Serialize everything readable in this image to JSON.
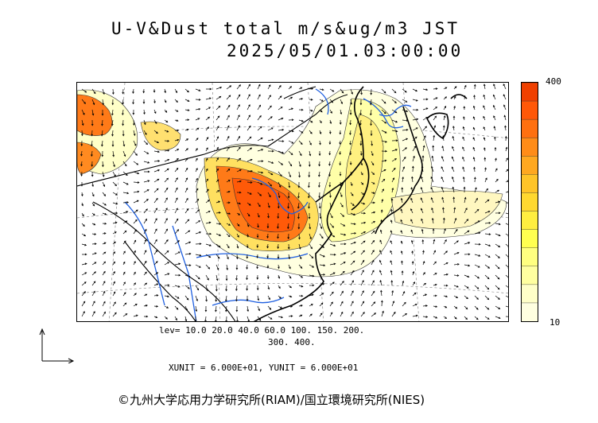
{
  "header": {
    "title_line1": "U-V&Dust total m/s&ug/m3 JST",
    "title_line2": "2025/05/01.03:00:00"
  },
  "colorbar": {
    "max_label": "400",
    "min_label": "10",
    "colors": [
      "#ffffe0",
      "#ffffc8",
      "#ffffa0",
      "#ffff80",
      "#ffff50",
      "#ffee40",
      "#ffd830",
      "#ffc428",
      "#ffa820",
      "#ff8c18",
      "#ff7010",
      "#ff5808",
      "#f04000"
    ]
  },
  "levels": {
    "line1": "lev= 10.0 20.0 40.0 60.0 100. 150. 200.",
    "line2": "300. 400."
  },
  "units_text": "XUNIT = 6.000E+01, YUNIT = 6.000E+01",
  "copyright": "©九州大学応用力学研究所(RIAM)/国立環境研究所(NIES)",
  "icons": {
    "reference_vector": "reference-vector-icon"
  }
}
